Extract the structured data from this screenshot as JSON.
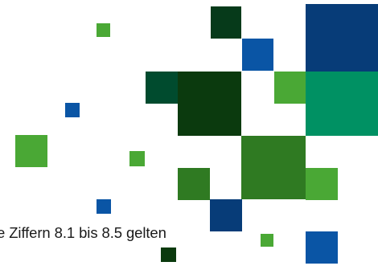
{
  "caption": "e Ziffern 8.1 bis 8.5 gelten",
  "palette": {
    "dark_green": "#0b3a0e",
    "deep_green": "#004b2e",
    "mid_green": "#2f7a22",
    "bright_green": "#4aa835",
    "teal_green": "#009163",
    "navy": "#073c78",
    "blue": "#0a55a5"
  }
}
